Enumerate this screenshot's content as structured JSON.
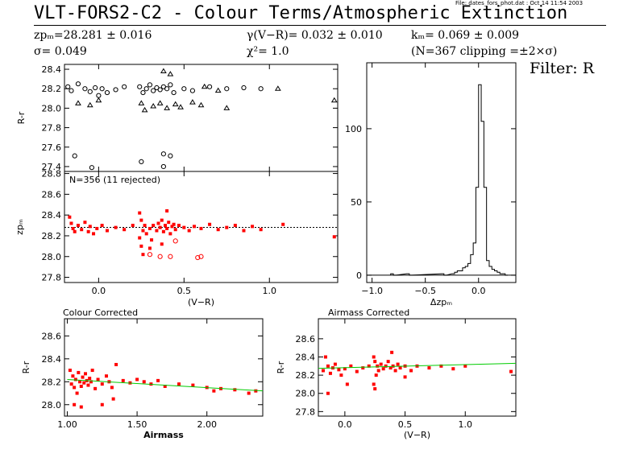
{
  "header": {
    "file_stamp": "File: dates_fors_phot.dat : Oct 14 11:54 2003",
    "title": "VLT-FORS2-C2 - Colour Terms/Atmospheric Extinction",
    "zp": "zpₘ=28.281 ± 0.016",
    "gamma": "γ(V−R)= 0.032 ± 0.010",
    "k": "kₘ= 0.069 ± 0.009",
    "sigma": "σ= 0.049",
    "chi": "χ²=  1.0",
    "n_info": "(N=367 clipping =±2×σ)",
    "filter": "Filter: R"
  },
  "colors": {
    "black": "#000000",
    "red": "#ff0000",
    "fit_line": "#00cc00"
  },
  "chart_data": [
    {
      "type": "scatter",
      "id": "raw",
      "ylabel": "R-r",
      "ylim": [
        27.35,
        28.45
      ],
      "xlim": [
        -0.2,
        1.4
      ],
      "yticks": [
        27.4,
        27.6,
        27.8,
        28.0,
        28.2,
        28.4
      ],
      "ytick_labels": [
        "27.4",
        "27.6",
        "27.8",
        "28.0",
        "28.2",
        "28.4"
      ],
      "series": [
        {
          "marker": "circle",
          "points": [
            [
              -0.18,
              28.22
            ],
            [
              -0.16,
              28.18
            ],
            [
              -0.12,
              28.25
            ],
            [
              -0.08,
              28.2
            ],
            [
              -0.05,
              28.17
            ],
            [
              -0.02,
              28.21
            ],
            [
              0.0,
              28.13
            ],
            [
              0.02,
              28.2
            ],
            [
              0.05,
              28.16
            ],
            [
              0.1,
              28.19
            ],
            [
              0.15,
              28.22
            ],
            [
              0.24,
              28.22
            ],
            [
              0.26,
              28.16
            ],
            [
              0.28,
              28.2
            ],
            [
              0.3,
              28.24
            ],
            [
              0.32,
              28.18
            ],
            [
              0.34,
              28.21
            ],
            [
              0.36,
              28.19
            ],
            [
              0.38,
              28.22
            ],
            [
              0.4,
              28.2
            ],
            [
              0.42,
              28.24
            ],
            [
              0.44,
              28.16
            ],
            [
              0.5,
              28.2
            ],
            [
              0.55,
              28.18
            ],
            [
              0.65,
              28.22
            ],
            [
              0.75,
              28.2
            ],
            [
              0.85,
              28.21
            ],
            [
              0.95,
              28.2
            ],
            [
              -0.14,
              27.51
            ],
            [
              -0.04,
              27.39
            ],
            [
              0.25,
              27.45
            ],
            [
              0.38,
              27.53
            ],
            [
              0.42,
              27.51
            ],
            [
              0.38,
              27.4
            ]
          ]
        },
        {
          "marker": "triangle",
          "points": [
            [
              -0.12,
              28.05
            ],
            [
              -0.05,
              28.03
            ],
            [
              0.0,
              28.08
            ],
            [
              0.25,
              28.05
            ],
            [
              0.27,
              27.98
            ],
            [
              0.32,
              28.02
            ],
            [
              0.36,
              28.05
            ],
            [
              0.4,
              28.0
            ],
            [
              0.45,
              28.04
            ],
            [
              0.48,
              28.01
            ],
            [
              0.55,
              28.06
            ],
            [
              0.6,
              28.03
            ],
            [
              0.62,
              28.22
            ],
            [
              0.7,
              28.18
            ],
            [
              0.75,
              28.0
            ],
            [
              1.05,
              28.2
            ],
            [
              1.38,
              28.08
            ],
            [
              0.38,
              28.38
            ],
            [
              0.42,
              28.35
            ]
          ]
        }
      ]
    },
    {
      "type": "scatter",
      "id": "zp",
      "ylabel": "zpₘ",
      "annotation": "N=356 (11 rejected)",
      "ylim": [
        27.75,
        28.82
      ],
      "xlim": [
        -0.2,
        1.4
      ],
      "reference_line": 28.281,
      "yticks": [
        27.8,
        28.0,
        28.2,
        28.4,
        28.6,
        28.8
      ],
      "ytick_labels": [
        "27.8",
        "28.0",
        "28.2",
        "28.4",
        "28.6",
        "28.8"
      ],
      "xticks": [
        0.0,
        0.5,
        1.0
      ],
      "xtick_labels": [
        "0.0",
        "0.5",
        "1.0"
      ],
      "xlabel": "(V−R)",
      "series": [
        {
          "marker": "dot",
          "points": [
            [
              -0.17,
              28.38
            ],
            [
              -0.16,
              28.32
            ],
            [
              -0.15,
              28.27
            ],
            [
              -0.14,
              28.24
            ],
            [
              -0.12,
              28.3
            ],
            [
              -0.1,
              28.26
            ],
            [
              -0.08,
              28.33
            ],
            [
              -0.06,
              28.24
            ],
            [
              -0.05,
              28.29
            ],
            [
              -0.03,
              28.22
            ],
            [
              -0.01,
              28.27
            ],
            [
              0.02,
              28.3
            ],
            [
              0.05,
              28.25
            ],
            [
              0.1,
              28.28
            ],
            [
              0.15,
              28.26
            ],
            [
              0.2,
              28.3
            ],
            [
              0.24,
              28.42
            ],
            [
              0.24,
              28.18
            ],
            [
              0.25,
              28.35
            ],
            [
              0.25,
              28.1
            ],
            [
              0.26,
              28.25
            ],
            [
              0.26,
              28.02
            ],
            [
              0.27,
              28.3
            ],
            [
              0.28,
              28.22
            ],
            [
              0.3,
              28.27
            ],
            [
              0.31,
              28.16
            ],
            [
              0.32,
              28.3
            ],
            [
              0.34,
              28.25
            ],
            [
              0.35,
              28.32
            ],
            [
              0.36,
              28.28
            ],
            [
              0.37,
              28.35
            ],
            [
              0.38,
              28.24
            ],
            [
              0.39,
              28.3
            ],
            [
              0.4,
              28.27
            ],
            [
              0.41,
              28.33
            ],
            [
              0.42,
              28.22
            ],
            [
              0.43,
              28.29
            ],
            [
              0.44,
              28.31
            ],
            [
              0.45,
              28.26
            ],
            [
              0.47,
              28.3
            ],
            [
              0.5,
              28.28
            ],
            [
              0.53,
              28.25
            ],
            [
              0.56,
              28.29
            ],
            [
              0.6,
              28.27
            ],
            [
              0.65,
              28.31
            ],
            [
              0.7,
              28.26
            ],
            [
              0.75,
              28.28
            ],
            [
              0.8,
              28.3
            ],
            [
              0.85,
              28.25
            ],
            [
              0.9,
              28.29
            ],
            [
              0.95,
              28.26
            ],
            [
              1.08,
              28.31
            ],
            [
              1.38,
              28.19
            ],
            [
              0.4,
              28.44
            ],
            [
              0.37,
              28.12
            ],
            [
              0.3,
              28.08
            ]
          ]
        },
        {
          "marker": "circle",
          "points": [
            [
              0.3,
              28.02
            ],
            [
              0.36,
              28.0
            ],
            [
              0.42,
              28.0
            ],
            [
              0.45,
              28.15
            ],
            [
              0.58,
              27.99
            ],
            [
              0.6,
              28.0
            ]
          ]
        }
      ]
    },
    {
      "type": "histogram",
      "id": "hist",
      "xlabel": "Δzpₘ",
      "xlim": [
        -1.05,
        0.35
      ],
      "ylim": [
        -5,
        145
      ],
      "xticks": [
        -1.0,
        -0.5,
        0.0
      ],
      "xtick_labels": [
        "−1.0",
        "−0.5",
        "0.0"
      ],
      "yticks": [
        0,
        50,
        100
      ],
      "ytick_labels": [
        "0",
        "50",
        "100"
      ],
      "bin_width": 0.025,
      "bins": [
        [
          -0.825,
          1
        ],
        [
          -0.8,
          0
        ],
        [
          -0.675,
          1
        ],
        [
          -0.65,
          0
        ],
        [
          -0.35,
          1
        ],
        [
          -0.325,
          0
        ],
        [
          -0.25,
          1
        ],
        [
          -0.225,
          2
        ],
        [
          -0.2,
          3
        ],
        [
          -0.175,
          3
        ],
        [
          -0.15,
          5
        ],
        [
          -0.125,
          6
        ],
        [
          -0.1,
          8
        ],
        [
          -0.075,
          14
        ],
        [
          -0.05,
          22
        ],
        [
          -0.025,
          60
        ],
        [
          0.0,
          130
        ],
        [
          0.025,
          105
        ],
        [
          0.05,
          60
        ],
        [
          0.075,
          10
        ],
        [
          0.1,
          6
        ],
        [
          0.125,
          4
        ],
        [
          0.15,
          3
        ],
        [
          0.175,
          2
        ],
        [
          0.2,
          1
        ],
        [
          0.225,
          1
        ],
        [
          0.25,
          0
        ]
      ]
    },
    {
      "type": "scatter",
      "id": "colour_corrected",
      "title": "Colour Corrected",
      "xlabel": "Airmass",
      "ylabel": "R-r",
      "xlim": [
        0.98,
        2.4
      ],
      "ylim": [
        27.9,
        28.75
      ],
      "xticks": [
        1.0,
        1.5,
        2.0
      ],
      "xtick_labels": [
        "1.00",
        "1.50",
        "2.00"
      ],
      "yticks": [
        28.0,
        28.2,
        28.4,
        28.6
      ],
      "ytick_labels": [
        "28.0",
        "28.2",
        "28.4",
        "28.6"
      ],
      "fit_line": [
        [
          1.0,
          28.22
        ],
        [
          2.4,
          28.12
        ]
      ],
      "series": [
        {
          "marker": "dot",
          "points": [
            [
              1.02,
              28.3
            ],
            [
              1.03,
              28.18
            ],
            [
              1.04,
              28.25
            ],
            [
              1.05,
              28.15
            ],
            [
              1.06,
              28.22
            ],
            [
              1.07,
              28.1
            ],
            [
              1.08,
              28.28
            ],
            [
              1.09,
              28.2
            ],
            [
              1.1,
              28.16
            ],
            [
              1.11,
              28.24
            ],
            [
              1.12,
              28.19
            ],
            [
              1.13,
              28.27
            ],
            [
              1.14,
              28.21
            ],
            [
              1.15,
              28.17
            ],
            [
              1.16,
              28.23
            ],
            [
              1.17,
              28.2
            ],
            [
              1.18,
              28.3
            ],
            [
              1.2,
              28.14
            ],
            [
              1.22,
              28.22
            ],
            [
              1.25,
              28.18
            ],
            [
              1.28,
              28.25
            ],
            [
              1.3,
              28.2
            ],
            [
              1.32,
              28.15
            ],
            [
              1.35,
              28.35
            ],
            [
              1.4,
              28.21
            ],
            [
              1.45,
              28.19
            ],
            [
              1.5,
              28.22
            ],
            [
              1.55,
              28.2
            ],
            [
              1.6,
              28.18
            ],
            [
              1.65,
              28.21
            ],
            [
              1.7,
              28.16
            ],
            [
              1.8,
              28.18
            ],
            [
              1.9,
              28.17
            ],
            [
              2.0,
              28.15
            ],
            [
              2.05,
              28.12
            ],
            [
              2.1,
              28.14
            ],
            [
              2.2,
              28.13
            ],
            [
              2.3,
              28.1
            ],
            [
              2.35,
              28.12
            ],
            [
              1.05,
              28.0
            ],
            [
              1.1,
              27.98
            ],
            [
              1.25,
              28.0
            ],
            [
              1.33,
              28.05
            ]
          ]
        }
      ]
    },
    {
      "type": "scatter",
      "id": "airmass_corrected",
      "title": "Airmass Corrected",
      "xlabel": "(V−R)",
      "ylabel": "R-r",
      "xlim": [
        -0.22,
        1.42
      ],
      "ylim": [
        27.75,
        28.82
      ],
      "xticks": [
        0.0,
        0.5,
        1.0
      ],
      "xtick_labels": [
        "0.0",
        "0.5",
        "1.0"
      ],
      "yticks": [
        27.8,
        28.0,
        28.2,
        28.4,
        28.6
      ],
      "ytick_labels": [
        "27.8",
        "28.0",
        "28.2",
        "28.4",
        "28.6"
      ],
      "fit_line": [
        [
          -0.22,
          28.275
        ],
        [
          1.42,
          28.33
        ]
      ],
      "series": [
        {
          "marker": "dot",
          "points": [
            [
              -0.18,
              28.25
            ],
            [
              -0.16,
              28.4
            ],
            [
              -0.14,
              28.3
            ],
            [
              -0.12,
              28.22
            ],
            [
              -0.1,
              28.28
            ],
            [
              -0.08,
              28.32
            ],
            [
              -0.05,
              28.26
            ],
            [
              -0.03,
              28.2
            ],
            [
              0.0,
              28.27
            ],
            [
              0.05,
              28.3
            ],
            [
              0.1,
              28.24
            ],
            [
              0.15,
              28.28
            ],
            [
              0.2,
              28.3
            ],
            [
              0.24,
              28.4
            ],
            [
              0.24,
              28.1
            ],
            [
              0.25,
              28.35
            ],
            [
              0.25,
              28.05
            ],
            [
              0.26,
              28.2
            ],
            [
              0.27,
              28.3
            ],
            [
              0.28,
              28.25
            ],
            [
              0.3,
              28.32
            ],
            [
              0.32,
              28.27
            ],
            [
              0.34,
              28.3
            ],
            [
              0.36,
              28.35
            ],
            [
              0.38,
              28.28
            ],
            [
              0.39,
              28.45
            ],
            [
              0.4,
              28.3
            ],
            [
              0.42,
              28.25
            ],
            [
              0.44,
              28.32
            ],
            [
              0.46,
              28.28
            ],
            [
              0.5,
              28.3
            ],
            [
              0.55,
              28.25
            ],
            [
              0.6,
              28.3
            ],
            [
              0.7,
              28.28
            ],
            [
              0.8,
              28.3
            ],
            [
              0.9,
              28.27
            ],
            [
              1.0,
              28.3
            ],
            [
              1.38,
              28.24
            ],
            [
              -0.14,
              28.0
            ],
            [
              0.02,
              28.1
            ],
            [
              0.5,
              28.18
            ]
          ]
        }
      ]
    }
  ]
}
